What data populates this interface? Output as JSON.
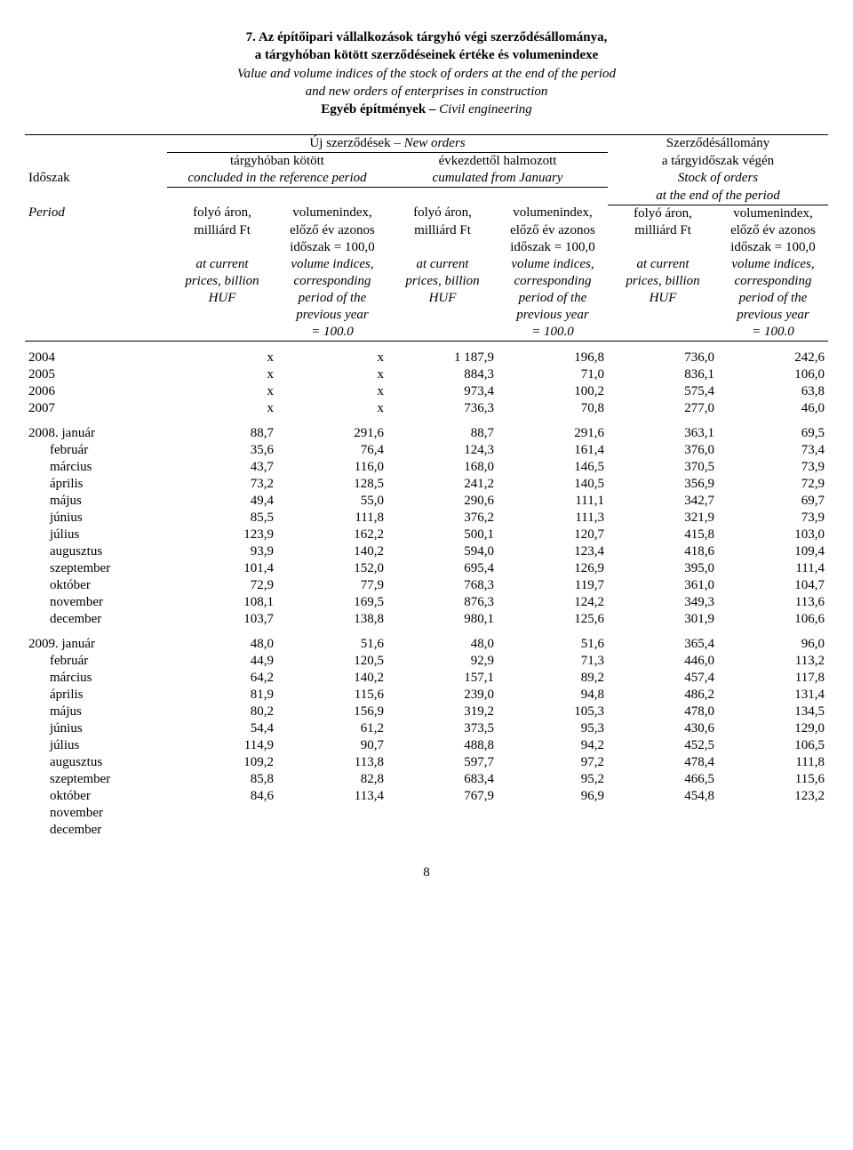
{
  "title": {
    "line1": "7. Az építőipari vállalkozások tárgyhó végi szerződésállománya,",
    "line2": "a tárgyhóban kötött szerződéseinek értéke és volumenindexe",
    "line3_italic": "Value and volume indices of the stock of orders at the end of the period",
    "line4_italic": "and new orders of enterprises in construction",
    "line5": "Egyéb építmények – ",
    "line5_italic": "Civil engineering"
  },
  "header": {
    "new_orders_hu": "Új szerződések – ",
    "new_orders_en": "New orders",
    "stock_hu": "Szerződésállomány",
    "targyhoban_hu": "tárgyhóban kötött",
    "evkezdettol_hu": "évkezdettől halmozott",
    "targyidoszak_hu": "a tárgyidőszak végén",
    "idoszak": "Időszak",
    "concluded_en": "concluded in the reference period",
    "cumulated_en": "cumulated from January",
    "stock_en": "Stock of orders",
    "at_end_en": "at the end of the period",
    "period": "Period",
    "folyo_aron": "folyó áron,",
    "volumenindex": "volumenindex,",
    "milliard": "milliárd Ft",
    "elozo_ev": "előző év azonos",
    "idoszak_100": "időszak = 100,0",
    "at_current": "at current",
    "volume_indices": "volume indices,",
    "prices_billion": "prices, billion",
    "corresponding": "corresponding",
    "huf": "HUF",
    "period_of": "period of the",
    "previous_year": "previous year",
    "eq100": "= 100.0"
  },
  "annual": [
    {
      "label": "2004",
      "v": [
        "x",
        "x",
        "1 187,9",
        "196,8",
        "736,0",
        "242,6"
      ]
    },
    {
      "label": "2005",
      "v": [
        "x",
        "x",
        "884,3",
        "71,0",
        "836,1",
        "106,0"
      ]
    },
    {
      "label": "2006",
      "v": [
        "x",
        "x",
        "973,4",
        "100,2",
        "575,4",
        "63,8"
      ]
    },
    {
      "label": "2007",
      "v": [
        "x",
        "x",
        "736,3",
        "70,8",
        "277,0",
        "46,0"
      ]
    }
  ],
  "y2008_label": "2008. január",
  "y2008": [
    {
      "label": "2008. január",
      "v": [
        "88,7",
        "291,6",
        "88,7",
        "291,6",
        "363,1",
        "69,5"
      ]
    },
    {
      "label": "február",
      "v": [
        "35,6",
        "76,4",
        "124,3",
        "161,4",
        "376,0",
        "73,4"
      ]
    },
    {
      "label": "március",
      "v": [
        "43,7",
        "116,0",
        "168,0",
        "146,5",
        "370,5",
        "73,9"
      ]
    },
    {
      "label": "április",
      "v": [
        "73,2",
        "128,5",
        "241,2",
        "140,5",
        "356,9",
        "72,9"
      ]
    },
    {
      "label": "május",
      "v": [
        "49,4",
        "55,0",
        "290,6",
        "111,1",
        "342,7",
        "69,7"
      ]
    },
    {
      "label": "június",
      "v": [
        "85,5",
        "111,8",
        "376,2",
        "111,3",
        "321,9",
        "73,9"
      ]
    },
    {
      "label": "július",
      "v": [
        "123,9",
        "162,2",
        "500,1",
        "120,7",
        "415,8",
        "103,0"
      ]
    },
    {
      "label": "augusztus",
      "v": [
        "93,9",
        "140,2",
        "594,0",
        "123,4",
        "418,6",
        "109,4"
      ]
    },
    {
      "label": "szeptember",
      "v": [
        "101,4",
        "152,0",
        "695,4",
        "126,9",
        "395,0",
        "111,4"
      ]
    },
    {
      "label": "október",
      "v": [
        "72,9",
        "77,9",
        "768,3",
        "119,7",
        "361,0",
        "104,7"
      ]
    },
    {
      "label": "november",
      "v": [
        "108,1",
        "169,5",
        "876,3",
        "124,2",
        "349,3",
        "113,6"
      ]
    },
    {
      "label": "december",
      "v": [
        "103,7",
        "138,8",
        "980,1",
        "125,6",
        "301,9",
        "106,6"
      ]
    }
  ],
  "y2009": [
    {
      "label": "2009. január",
      "v": [
        "48,0",
        "51,6",
        "48,0",
        "51,6",
        "365,4",
        "96,0"
      ]
    },
    {
      "label": "február",
      "v": [
        "44,9",
        "120,5",
        "92,9",
        "71,3",
        "446,0",
        "113,2"
      ]
    },
    {
      "label": "március",
      "v": [
        "64,2",
        "140,2",
        "157,1",
        "89,2",
        "457,4",
        "117,8"
      ]
    },
    {
      "label": "április",
      "v": [
        "81,9",
        "115,6",
        "239,0",
        "94,8",
        "486,2",
        "131,4"
      ]
    },
    {
      "label": "május",
      "v": [
        "80,2",
        "156,9",
        "319,2",
        "105,3",
        "478,0",
        "134,5"
      ]
    },
    {
      "label": "június",
      "v": [
        "54,4",
        "61,2",
        "373,5",
        "95,3",
        "430,6",
        "129,0"
      ]
    },
    {
      "label": "július",
      "v": [
        "114,9",
        "90,7",
        "488,8",
        "94,2",
        "452,5",
        "106,5"
      ]
    },
    {
      "label": "augusztus",
      "v": [
        "109,2",
        "113,8",
        "597,7",
        "97,2",
        "478,4",
        "111,8"
      ]
    },
    {
      "label": "szeptember",
      "v": [
        "85,8",
        "82,8",
        "683,4",
        "95,2",
        "466,5",
        "115,6"
      ]
    },
    {
      "label": "október",
      "v": [
        "84,6",
        "113,4",
        "767,9",
        "96,9",
        "454,8",
        "123,2"
      ]
    },
    {
      "label": "november",
      "v": [
        "",
        "",
        "",
        "",
        "",
        ""
      ]
    },
    {
      "label": "december",
      "v": [
        "",
        "",
        "",
        "",
        "",
        ""
      ]
    }
  ],
  "page_number": "8"
}
